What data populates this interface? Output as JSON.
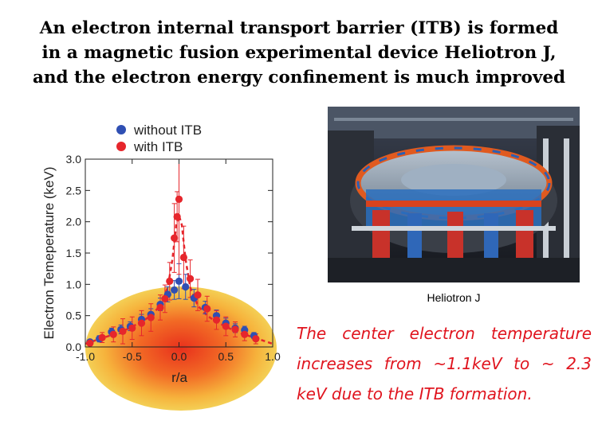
{
  "title_lines": [
    "An electron internal transport barrier (ITB) is  formed",
    "in a magnetic fusion experimental device Heliotron J,",
    "and the electron energy confinement is much improved"
  ],
  "photo": {
    "caption": "Heliotron J"
  },
  "summary_lines": [
    "The  center  electron  temperature",
    "increases  from  ~1.1keV  to  ~ 2.3",
    "keV due to the ITB formation."
  ],
  "colors": {
    "with_itb": "#e6262c",
    "without_itb": "#2f4fb3",
    "summary_text": "#e0141e"
  },
  "chart_data": {
    "type": "scatter",
    "title": "",
    "xlabel": "r/a",
    "ylabel": "Electron Temeperature (keV)",
    "xlim": [
      -1.0,
      1.0
    ],
    "ylim": [
      0.0,
      3.0
    ],
    "xticks": [
      "-1.0",
      "-0.5",
      "0.0",
      "0.5",
      "1.0"
    ],
    "yticks": [
      "0.0",
      "0.5",
      "1.0",
      "1.5",
      "2.0",
      "2.5",
      "3.0"
    ],
    "grid": false,
    "legend": "top",
    "series": [
      {
        "name": "without ITB",
        "color": "#2f4fb3",
        "points": [
          {
            "x": -0.95,
            "y": 0.08,
            "err": 0.04
          },
          {
            "x": -0.85,
            "y": 0.13,
            "err": 0.05
          },
          {
            "x": -0.72,
            "y": 0.24,
            "err": 0.06
          },
          {
            "x": -0.62,
            "y": 0.28,
            "err": 0.07
          },
          {
            "x": -0.52,
            "y": 0.33,
            "err": 0.07
          },
          {
            "x": -0.4,
            "y": 0.44,
            "err": 0.08
          },
          {
            "x": -0.3,
            "y": 0.52,
            "err": 0.09
          },
          {
            "x": -0.2,
            "y": 0.68,
            "err": 0.1
          },
          {
            "x": -0.12,
            "y": 0.84,
            "err": 0.12
          },
          {
            "x": -0.05,
            "y": 0.91,
            "err": 0.15
          },
          {
            "x": 0.0,
            "y": 1.05,
            "err": 0.28
          },
          {
            "x": 0.07,
            "y": 0.96,
            "err": 0.2
          },
          {
            "x": 0.16,
            "y": 0.78,
            "err": 0.14
          },
          {
            "x": 0.28,
            "y": 0.63,
            "err": 0.1
          },
          {
            "x": 0.4,
            "y": 0.5,
            "err": 0.09
          },
          {
            "x": 0.5,
            "y": 0.38,
            "err": 0.08
          },
          {
            "x": 0.6,
            "y": 0.3,
            "err": 0.07
          },
          {
            "x": 0.7,
            "y": 0.27,
            "err": 0.06
          },
          {
            "x": 0.8,
            "y": 0.18,
            "err": 0.05
          }
        ]
      },
      {
        "name": "with ITB",
        "color": "#e6262c",
        "points": [
          {
            "x": -0.95,
            "y": 0.06,
            "err": 0.04
          },
          {
            "x": -0.82,
            "y": 0.15,
            "err": 0.08
          },
          {
            "x": -0.7,
            "y": 0.2,
            "err": 0.12
          },
          {
            "x": -0.6,
            "y": 0.25,
            "err": 0.2
          },
          {
            "x": -0.5,
            "y": 0.3,
            "err": 0.18
          },
          {
            "x": -0.4,
            "y": 0.38,
            "err": 0.2
          },
          {
            "x": -0.3,
            "y": 0.47,
            "err": 0.22
          },
          {
            "x": -0.2,
            "y": 0.63,
            "err": 0.2
          },
          {
            "x": -0.15,
            "y": 0.77,
            "err": 0.22
          },
          {
            "x": -0.1,
            "y": 1.05,
            "err": 0.3
          },
          {
            "x": -0.05,
            "y": 1.74,
            "err": 0.55
          },
          {
            "x": -0.02,
            "y": 2.08,
            "err": 0.4
          },
          {
            "x": 0.0,
            "y": 2.36,
            "err": 1.2
          },
          {
            "x": 0.05,
            "y": 1.43,
            "err": 0.5
          },
          {
            "x": 0.12,
            "y": 1.09,
            "err": 0.3
          },
          {
            "x": 0.2,
            "y": 0.83,
            "err": 0.25
          },
          {
            "x": 0.3,
            "y": 0.61,
            "err": 0.2
          },
          {
            "x": 0.4,
            "y": 0.43,
            "err": 0.15
          },
          {
            "x": 0.5,
            "y": 0.33,
            "err": 0.15
          },
          {
            "x": 0.6,
            "y": 0.28,
            "err": 0.12
          },
          {
            "x": 0.7,
            "y": 0.2,
            "err": 0.1
          },
          {
            "x": 0.82,
            "y": 0.13,
            "err": 0.08
          }
        ]
      }
    ],
    "fit_line": {
      "series": "with ITB",
      "style": "dashed",
      "x": [
        -1.0,
        -0.8,
        -0.6,
        -0.4,
        -0.3,
        -0.2,
        -0.12,
        -0.07,
        -0.03,
        0.0,
        0.03,
        0.07,
        0.12,
        0.2,
        0.3,
        0.4,
        0.6,
        0.8,
        1.0
      ],
      "y": [
        0.05,
        0.15,
        0.25,
        0.4,
        0.5,
        0.66,
        0.95,
        1.4,
        1.95,
        2.1,
        1.95,
        1.4,
        0.95,
        0.66,
        0.5,
        0.4,
        0.25,
        0.15,
        0.05
      ]
    }
  }
}
